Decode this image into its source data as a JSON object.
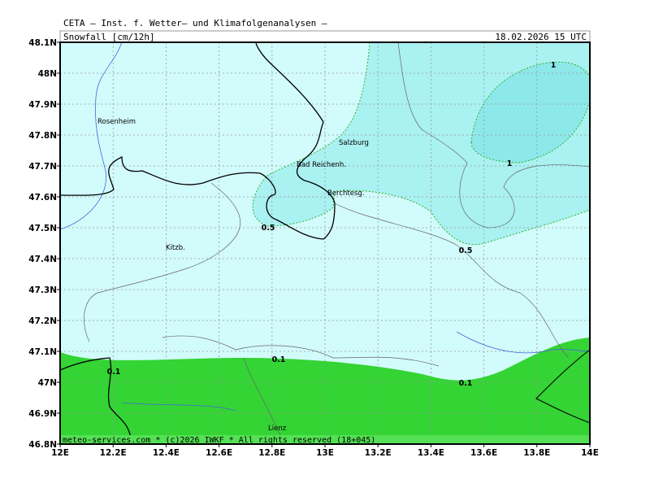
{
  "header": {
    "title": "CETA — Inst. f. Wetter— und Klimafolgenanalysen —",
    "field": "Snowfall [cm/12h]",
    "valid": "18.02.2026 15 UTC"
  },
  "map": {
    "xticks": [
      {
        "value": 12,
        "label": "12E"
      },
      {
        "value": 12.2,
        "label": "12.2E"
      },
      {
        "value": 12.4,
        "label": "12.4E"
      },
      {
        "value": 12.6,
        "label": "12.6E"
      },
      {
        "value": 12.8,
        "label": "12.8E"
      },
      {
        "value": 13,
        "label": "13E"
      },
      {
        "value": 13.2,
        "label": "13.2E"
      },
      {
        "value": 13.4,
        "label": "13.4E"
      },
      {
        "value": 13.6,
        "label": "13.6E"
      },
      {
        "value": 13.8,
        "label": "13.8E"
      },
      {
        "value": 14,
        "label": "14E"
      }
    ],
    "yticks": [
      {
        "value": 46.8,
        "label": "46.8N"
      },
      {
        "value": 46.9,
        "label": "46.9N"
      },
      {
        "value": 47,
        "label": "47N"
      },
      {
        "value": 47.1,
        "label": "47.1N"
      },
      {
        "value": 47.2,
        "label": "47.2N"
      },
      {
        "value": 47.3,
        "label": "47.3N"
      },
      {
        "value": 47.4,
        "label": "47.4N"
      },
      {
        "value": 47.5,
        "label": "47.5N"
      },
      {
        "value": 47.6,
        "label": "47.6N"
      },
      {
        "value": 47.7,
        "label": "47.7N"
      },
      {
        "value": 47.8,
        "label": "47.8N"
      },
      {
        "value": 47.9,
        "label": "47.9N"
      },
      {
        "value": 48,
        "label": "48N"
      },
      {
        "value": 48.1,
        "label": "48.1N"
      }
    ],
    "places": [
      "Rosenheim",
      "Salzburg",
      "Bad Reichenh.",
      "Berchtesg.",
      "Kitzb.",
      "Lienz"
    ],
    "contour_labels": [
      "1",
      "1",
      "0.5",
      "0.5",
      "0.1",
      "0.1",
      "0.1"
    ],
    "footer": "meteo-services.com * (c)2026 IWKF * All rights reserved (18+045)"
  }
}
